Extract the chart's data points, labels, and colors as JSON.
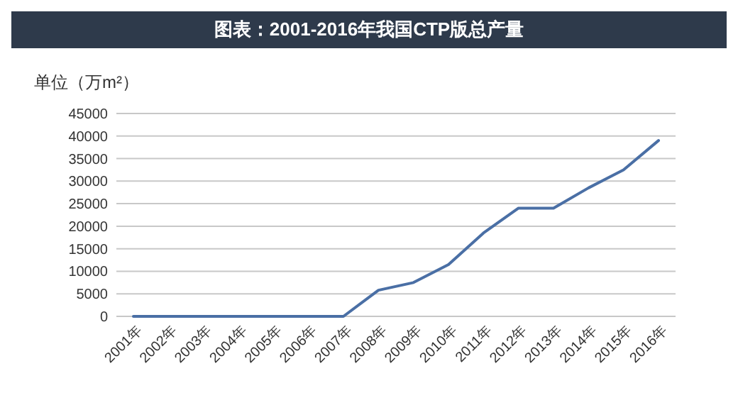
{
  "chart_data": {
    "type": "line",
    "title": "图表：2001-2016年我国CTP版总产量",
    "ylabel": "单位（万m²）",
    "categories": [
      "2001年",
      "2002年",
      "2003年",
      "2004年",
      "2005年",
      "2006年",
      "2007年",
      "2008年",
      "2009年",
      "2010年",
      "2011年",
      "2012年",
      "2013年",
      "2014年",
      "2015年",
      "2016年"
    ],
    "series": [
      {
        "color": "#4a6fa5",
        "values": [
          0,
          0,
          0,
          0,
          0,
          0,
          0,
          5800,
          7500,
          11500,
          18500,
          24000,
          24000,
          28500,
          32500,
          39000
        ]
      }
    ],
    "ylim": [
      0,
      45000
    ],
    "yticks": [
      0,
      5000,
      10000,
      15000,
      20000,
      25000,
      30000,
      35000,
      40000,
      45000
    ],
    "grid": "y",
    "marker": "none",
    "line_style": "solid"
  }
}
